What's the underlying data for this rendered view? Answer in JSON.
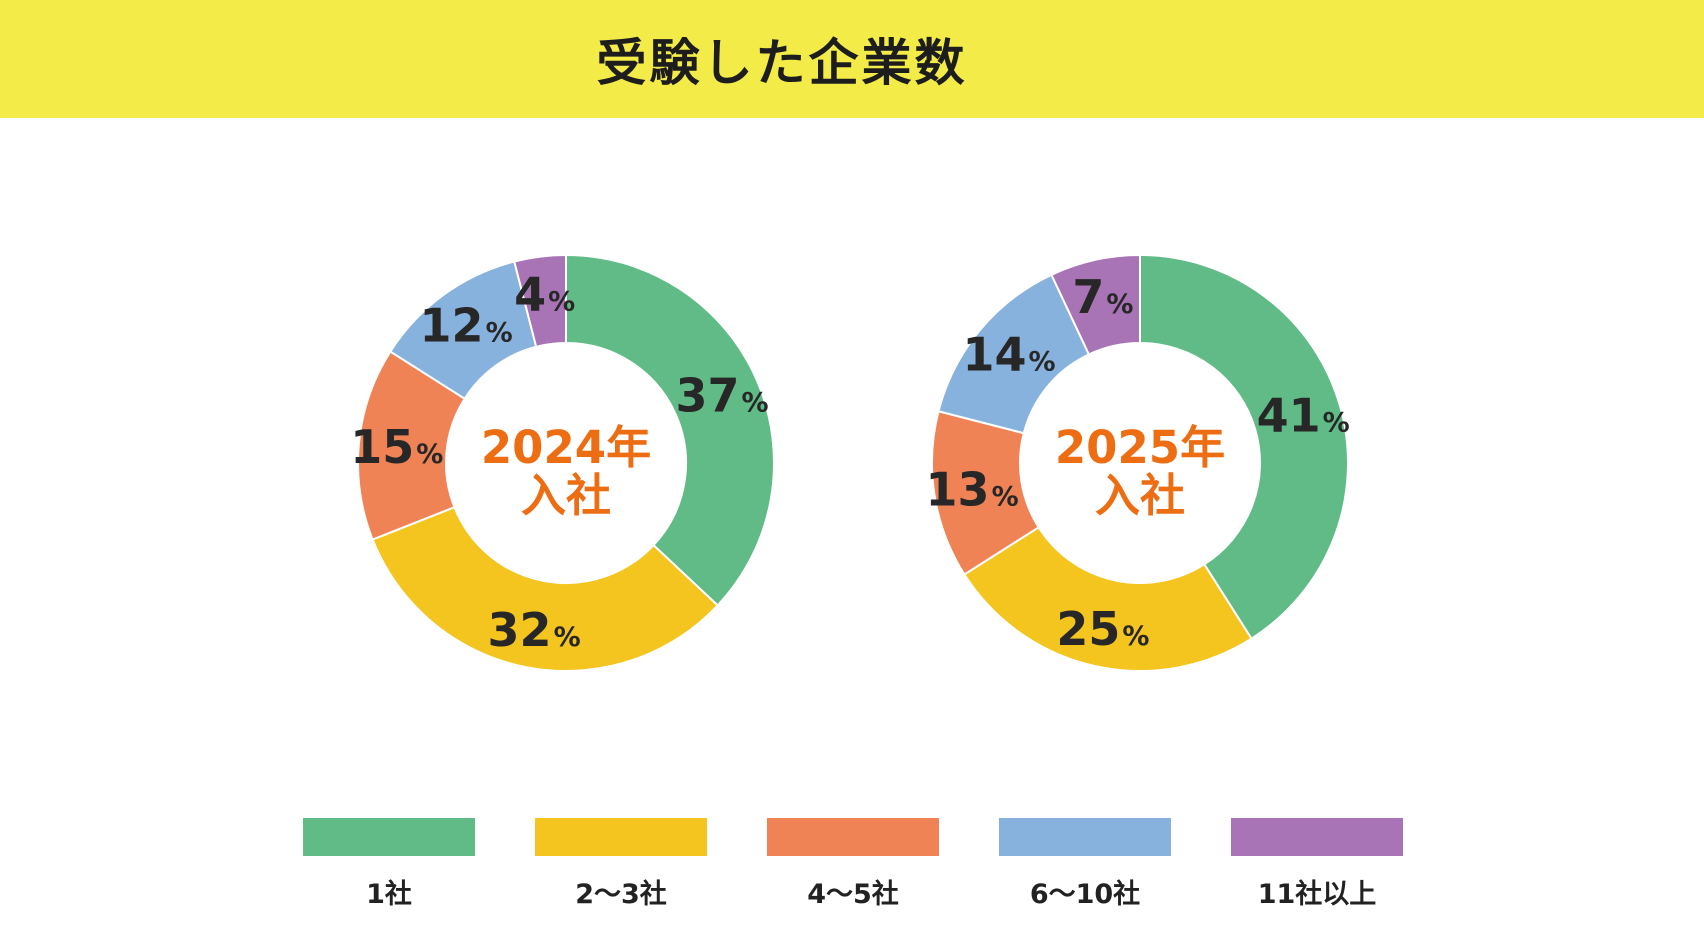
{
  "header": {
    "title": "受験した企業数"
  },
  "chart_data": {
    "type": "pie",
    "variant": "donut",
    "title": "受験した企業数",
    "unit": "%",
    "legend_position": "bottom",
    "categories": [
      "1社",
      "2〜3社",
      "4〜5社",
      "6〜10社",
      "11社以上"
    ],
    "segment_colors": [
      "#60bb86",
      "#f4c41f",
      "#f08356",
      "#87b2dd",
      "#a874b5"
    ],
    "charts": [
      {
        "name": "2024年入社",
        "center_label_lines": [
          "2024年",
          "入社"
        ],
        "values": [
          37,
          32,
          15,
          12,
          4
        ]
      },
      {
        "name": "2025年入社",
        "center_label_lines": [
          "2025年",
          "入社"
        ],
        "values": [
          41,
          25,
          13,
          14,
          7
        ]
      }
    ],
    "styles": {
      "header_bg": "#f3ec48",
      "center_label_color": "#ed6d13",
      "value_label_color": "#272727",
      "separator_color": "#ffffff"
    }
  }
}
